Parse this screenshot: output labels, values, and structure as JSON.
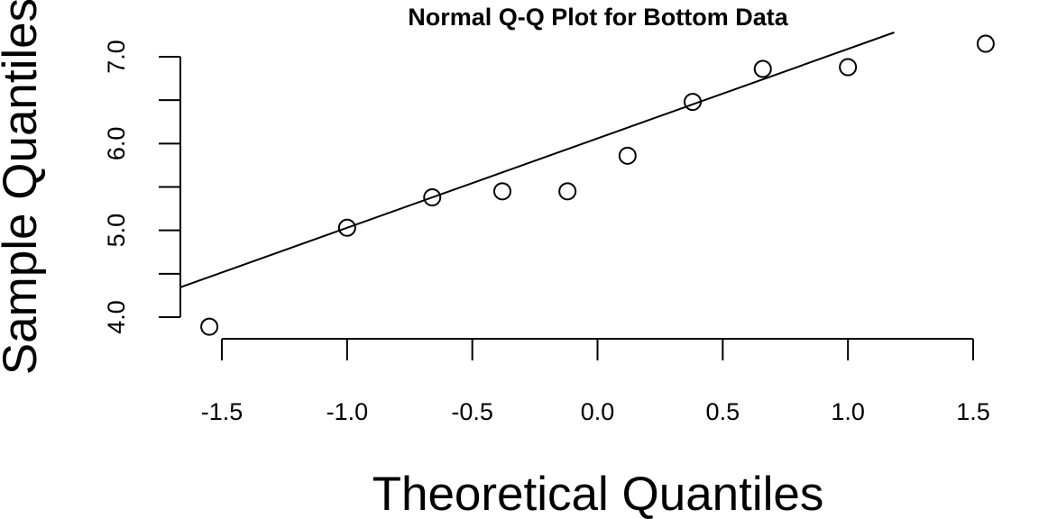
{
  "chart_data": {
    "type": "scatter",
    "title": "Normal Q-Q Plot for Bottom Data",
    "xlabel": "Theoretical Quantiles",
    "ylabel": "Sample Quantiles",
    "xlim": [
      -1.5,
      1.5
    ],
    "ylim": [
      4.0,
      7.0
    ],
    "x_ticks": [
      -1.5,
      -1.0,
      -0.5,
      0.0,
      0.5,
      1.0,
      1.5
    ],
    "x_tick_labels": [
      "-1.5",
      "-1.0",
      "-0.5",
      "0.0",
      "0.5",
      "1.0",
      "1.5"
    ],
    "y_ticks": [
      4.0,
      4.5,
      5.0,
      5.5,
      6.0,
      6.5,
      7.0
    ],
    "y_tick_labels": [
      "4.0",
      "",
      "5.0",
      "",
      "6.0",
      "",
      "7.0"
    ],
    "points": [
      {
        "x": -1.55,
        "y": 3.89
      },
      {
        "x": -1.0,
        "y": 5.03
      },
      {
        "x": -0.66,
        "y": 5.38
      },
      {
        "x": -0.38,
        "y": 5.45
      },
      {
        "x": -0.12,
        "y": 5.45
      },
      {
        "x": 0.12,
        "y": 5.86
      },
      {
        "x": 0.38,
        "y": 6.48
      },
      {
        "x": 0.66,
        "y": 6.86
      },
      {
        "x": 1.0,
        "y": 6.88
      },
      {
        "x": 1.55,
        "y": 7.15
      }
    ],
    "reference_line": {
      "intercept": 6.06,
      "slope": 1.03
    },
    "grid": false,
    "legend": "none"
  }
}
